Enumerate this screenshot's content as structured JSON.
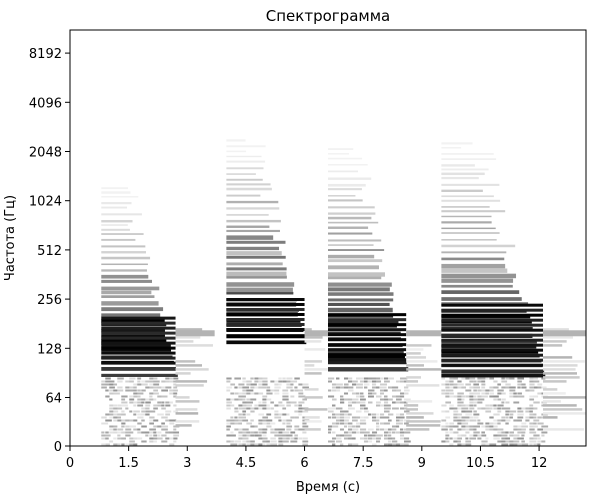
{
  "chart_data": {
    "type": "heatmap",
    "title": "Спектрограмма",
    "xlabel": "Время (с)",
    "ylabel": "Частота (Гц)",
    "xlim": [
      0,
      13.2
    ],
    "ylim": [
      0,
      16384
    ],
    "y_scale": "log2 (symlog)",
    "colormap": "grayscale",
    "xticks": [
      {
        "value": 0,
        "label": "0"
      },
      {
        "value": 1.5,
        "label": "1.5"
      },
      {
        "value": 3,
        "label": "3"
      },
      {
        "value": 4.5,
        "label": "4.5"
      },
      {
        "value": 6,
        "label": "6"
      },
      {
        "value": 7.5,
        "label": "7.5"
      },
      {
        "value": 9,
        "label": "9"
      },
      {
        "value": 10.5,
        "label": "10.5"
      },
      {
        "value": 12,
        "label": "12"
      }
    ],
    "yticks": [
      {
        "value": 0,
        "label": "0"
      },
      {
        "value": 64,
        "label": "64"
      },
      {
        "value": 128,
        "label": "128"
      },
      {
        "value": 256,
        "label": "256"
      },
      {
        "value": 512,
        "label": "512"
      },
      {
        "value": 1024,
        "label": "1024"
      },
      {
        "value": 2048,
        "label": "2048"
      },
      {
        "value": 4096,
        "label": "4096"
      },
      {
        "value": 8192,
        "label": "8192"
      }
    ],
    "segments": [
      {
        "t_start": 0.8,
        "t_end": 2.7,
        "f_top": 1300,
        "f_strong": [
          100,
          200
        ],
        "tail_end": 3.7
      },
      {
        "t_start": 4.0,
        "t_end": 6.0,
        "f_top": 2600,
        "f_strong": [
          160,
          260
        ],
        "tail_end": 6.6
      },
      {
        "t_start": 6.6,
        "t_end": 8.6,
        "f_top": 2200,
        "f_strong": [
          110,
          210
        ],
        "tail_end": 9.5
      },
      {
        "t_start": 9.5,
        "t_end": 12.1,
        "f_top": 2400,
        "f_strong": [
          100,
          240
        ],
        "tail_end": 13.2
      }
    ],
    "grid": false,
    "legend": false
  }
}
